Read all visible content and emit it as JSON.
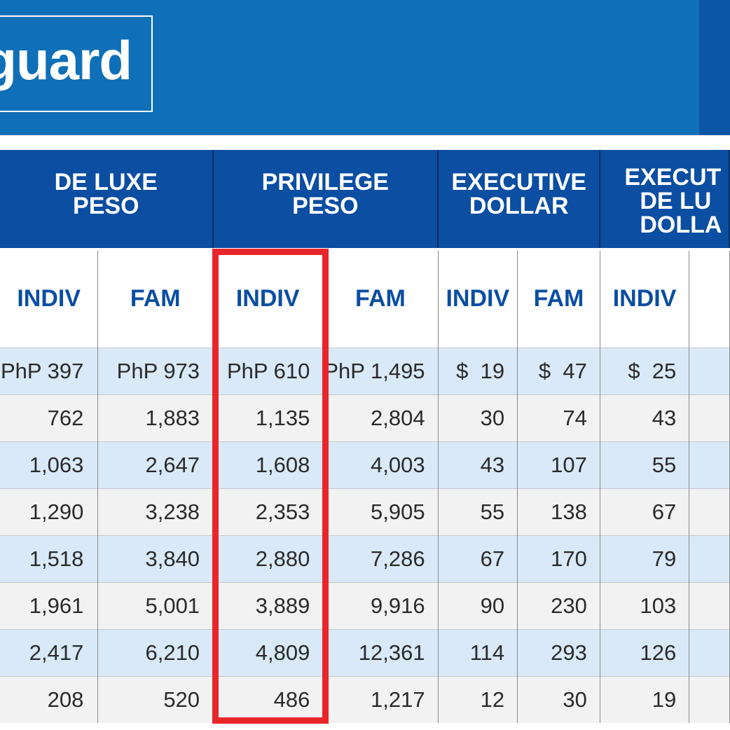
{
  "banner": {
    "brand_text": "guard"
  },
  "table": {
    "groups": [
      {
        "lines": [
          "DE LUXE",
          "PESO"
        ]
      },
      {
        "lines": [
          "PRIVILEGE",
          "PESO"
        ]
      },
      {
        "lines": [
          "EXECUTIVE",
          "DOLLAR"
        ]
      },
      {
        "lines": [
          "EXECUT",
          "DE LU",
          "DOLLA"
        ]
      }
    ],
    "subheaders": [
      "INDIV",
      "FAM",
      "INDIV",
      "FAM",
      "INDIV",
      "FAM",
      "INDIV",
      ""
    ],
    "rows": [
      [
        "PhP 397",
        "PhP 973",
        "PhP 610",
        "PhP 1,495",
        "$  19",
        "$  47",
        "$  25",
        ""
      ],
      [
        "762",
        "1,883",
        "1,135",
        "2,804",
        "30",
        "74",
        "43",
        ""
      ],
      [
        "1,063",
        "2,647",
        "1,608",
        "4,003",
        "43",
        "107",
        "55",
        ""
      ],
      [
        "1,290",
        "3,238",
        "2,353",
        "5,905",
        "55",
        "138",
        "67",
        ""
      ],
      [
        "1,518",
        "3,840",
        "2,880",
        "7,286",
        "67",
        "170",
        "79",
        ""
      ],
      [
        "1,961",
        "5,001",
        "3,889",
        "9,916",
        "90",
        "230",
        "103",
        ""
      ],
      [
        "2,417",
        "6,210",
        "4,809",
        "12,361",
        "114",
        "293",
        "126",
        ""
      ],
      [
        "208",
        "520",
        "486",
        "1,217",
        "12",
        "30",
        "19",
        ""
      ]
    ]
  },
  "highlight": {
    "color": "#e8262a",
    "target_column": "PRIVILEGE PESO INDIV"
  }
}
